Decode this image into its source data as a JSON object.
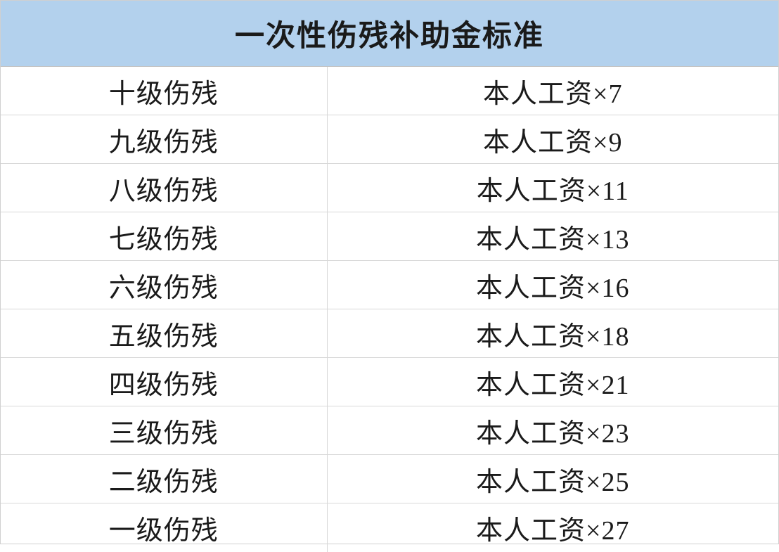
{
  "table": {
    "title": "一次性伤残补助金标准",
    "header_bg_color": "#b3d1ed",
    "header_text_color": "#1a1a1a",
    "header_fontsize": 42,
    "cell_fontsize": 38,
    "cell_text_color": "#1a1a1a",
    "border_color": "#d8d8d8",
    "background_color": "#ffffff",
    "col1_width_pct": 42,
    "col2_width_pct": 58,
    "rows": [
      {
        "level": "十级伤残",
        "value": "本人工资×7"
      },
      {
        "level": "九级伤残",
        "value": "本人工资×9"
      },
      {
        "level": "八级伤残",
        "value": "本人工资×11"
      },
      {
        "level": "七级伤残",
        "value": "本人工资×13"
      },
      {
        "level": "六级伤残",
        "value": "本人工资×16"
      },
      {
        "level": "五级伤残",
        "value": "本人工资×18"
      },
      {
        "level": "四级伤残",
        "value": "本人工资×21"
      },
      {
        "level": "三级伤残",
        "value": "本人工资×23"
      },
      {
        "level": "二级伤残",
        "value": "本人工资×25"
      },
      {
        "level": "一级伤残",
        "value": "本人工资×27"
      }
    ]
  }
}
